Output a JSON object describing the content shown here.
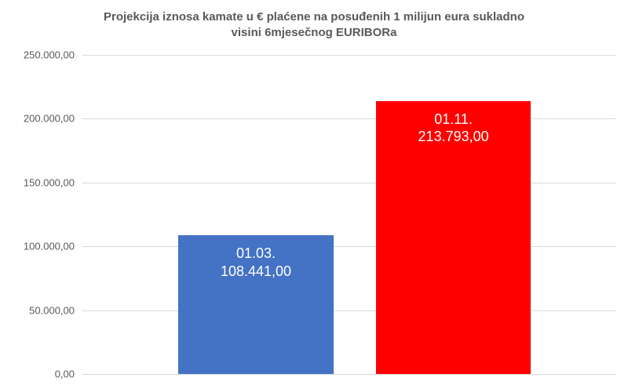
{
  "chart": {
    "type": "bar",
    "title_line1": "Projekcija iznosa  kamate u €  plaćene na posuđenih 1  milijun eura sukladno",
    "title_line2": "visini 6mjesečnog EURIBORa",
    "title_fontsize": 15,
    "title_color": "#595959",
    "background_color": "#ffffff",
    "grid_color": "#d9d9d9",
    "ylim_min": 0,
    "ylim_max": 250000,
    "ytick_step": 50000,
    "y_tick_labels": [
      "0,00",
      "50.000,00",
      "100.000,00",
      "150.000,00",
      "200.000,00",
      "250.000,00"
    ],
    "y_tick_fontsize": 13,
    "y_tick_color": "#595959",
    "bars": [
      {
        "date_label": "01.03.",
        "value": 108441,
        "value_label": "108.441,00",
        "color": "#4472c4",
        "left_pct": 18,
        "width_pct": 29
      },
      {
        "date_label": "01.11.",
        "value": 213793,
        "value_label": "213.793,00",
        "color": "#ff0000",
        "left_pct": 55,
        "width_pct": 29
      }
    ],
    "bar_label_color": "#ffffff",
    "bar_label_fontsize": 18
  }
}
